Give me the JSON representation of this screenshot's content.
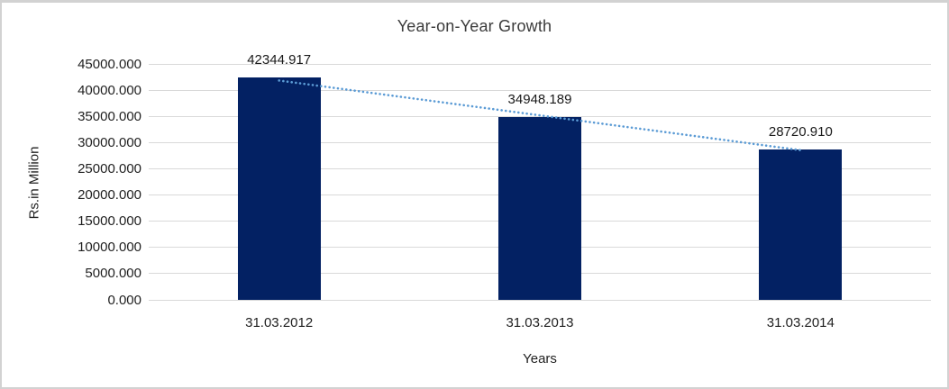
{
  "chart_data": {
    "type": "bar",
    "title": "Year-on-Year Growth",
    "xlabel": "Years",
    "ylabel": "Rs.in Million",
    "categories": [
      "31.03.2012",
      "31.03.2013",
      "31.03.2014"
    ],
    "values": [
      42344.917,
      34948.189,
      28720.91
    ],
    "data_labels": [
      "42344.917",
      "34948.189",
      "28720.910"
    ],
    "ylim": [
      0,
      45000
    ],
    "ytick_step": 5000,
    "yticks": [
      "0.000",
      "5000.000",
      "10000.000",
      "15000.000",
      "20000.000",
      "25000.000",
      "30000.000",
      "35000.000",
      "40000.000",
      "45000.000"
    ],
    "grid": true,
    "legend": false,
    "bar_color": "#032163",
    "gridline_color": "#d9d9d9",
    "trendline": {
      "style": "dotted",
      "color": "#5B9BD5",
      "from_value": 42344.917,
      "to_value": 28720.91
    }
  }
}
